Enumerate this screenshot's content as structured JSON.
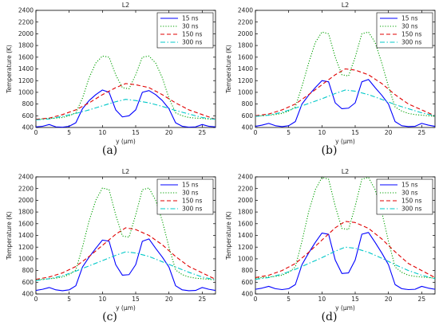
{
  "figure": {
    "panel_tags": [
      "(a)",
      "(b)",
      "(c)",
      "(d)"
    ]
  },
  "chart_data": [
    {
      "type": "line",
      "title": "L2",
      "xlabel": "y (μm)",
      "ylabel": "Temperature (K)",
      "xlim": [
        0,
        27
      ],
      "ylim": [
        400,
        2400
      ],
      "xticks": [
        0,
        5,
        10,
        15,
        20,
        25
      ],
      "yticks": [
        400,
        600,
        800,
        1000,
        1200,
        1400,
        1600,
        1800,
        2000,
        2200,
        2400
      ],
      "grid": false,
      "legend": "top-right",
      "series": [
        {
          "name": "15 ns",
          "color": "#0000ff",
          "dash": "solid",
          "x": [
            0,
            1,
            2,
            3,
            4,
            5,
            6,
            7,
            8,
            9,
            10,
            11,
            12,
            13,
            14,
            15,
            16,
            17,
            18,
            19,
            20,
            21,
            22,
            23,
            24,
            25,
            26,
            27
          ],
          "y": [
            410,
            420,
            450,
            410,
            405,
            420,
            480,
            720,
            860,
            960,
            1040,
            1000,
            700,
            580,
            600,
            700,
            1000,
            1030,
            960,
            860,
            720,
            480,
            420,
            405,
            410,
            450,
            420,
            410
          ]
        },
        {
          "name": "30 ns",
          "color": "#00a000",
          "dash": "dot",
          "x": [
            0,
            1,
            2,
            3,
            4,
            5,
            6,
            7,
            8,
            9,
            10,
            11,
            12,
            13,
            14,
            15,
            16,
            17,
            18,
            19,
            20,
            21,
            22,
            23,
            24,
            25,
            26,
            27
          ],
          "y": [
            540,
            545,
            555,
            560,
            570,
            600,
            650,
            900,
            1250,
            1500,
            1620,
            1600,
            1300,
            1080,
            1060,
            1300,
            1600,
            1620,
            1500,
            1250,
            900,
            650,
            600,
            570,
            560,
            555,
            545,
            540
          ]
        },
        {
          "name": "150 ns",
          "color": "#e00000",
          "dash": "dash",
          "x": [
            0,
            2,
            4,
            6,
            8,
            10,
            12,
            13.5,
            15,
            17,
            19,
            21,
            23,
            25,
            27
          ],
          "y": [
            540,
            560,
            620,
            700,
            820,
            960,
            1080,
            1150,
            1130,
            1080,
            960,
            820,
            700,
            620,
            540
          ]
        },
        {
          "name": "300 ns",
          "color": "#00c8c8",
          "dash": "dashdot",
          "x": [
            0,
            2,
            4,
            6,
            8,
            10,
            12,
            13.5,
            15,
            17,
            19,
            21,
            23,
            25,
            27
          ],
          "y": [
            530,
            545,
            590,
            640,
            700,
            770,
            840,
            880,
            860,
            820,
            760,
            690,
            630,
            570,
            540
          ]
        }
      ]
    },
    {
      "type": "line",
      "title": "L2",
      "xlabel": "y (μm)",
      "ylabel": "Temperature (K)",
      "xlim": [
        0,
        27
      ],
      "ylim": [
        400,
        2400
      ],
      "xticks": [
        0,
        5,
        10,
        15,
        20,
        25
      ],
      "yticks": [
        400,
        600,
        800,
        1000,
        1200,
        1400,
        1600,
        1800,
        2000,
        2200,
        2400
      ],
      "grid": false,
      "legend": "top-right",
      "series": [
        {
          "name": "15 ns",
          "color": "#0000ff",
          "dash": "solid",
          "x": [
            0,
            1,
            2,
            3,
            4,
            5,
            6,
            7,
            8,
            9,
            10,
            11,
            12,
            13,
            14,
            15,
            16,
            17,
            18,
            19,
            20,
            21,
            22,
            23,
            24,
            25,
            26,
            27
          ],
          "y": [
            420,
            440,
            470,
            430,
            415,
            430,
            500,
            800,
            950,
            1080,
            1200,
            1180,
            820,
            720,
            730,
            820,
            1180,
            1220,
            1080,
            950,
            800,
            500,
            430,
            415,
            420,
            470,
            440,
            420
          ]
        },
        {
          "name": "30 ns",
          "color": "#00a000",
          "dash": "dot",
          "x": [
            0,
            1,
            2,
            3,
            4,
            5,
            6,
            7,
            8,
            9,
            10,
            11,
            12,
            13,
            14,
            15,
            16,
            17,
            18,
            19,
            20,
            21,
            22,
            23,
            24,
            25,
            26,
            27
          ],
          "y": [
            590,
            600,
            610,
            620,
            640,
            680,
            750,
            1100,
            1500,
            1850,
            2030,
            2000,
            1600,
            1300,
            1280,
            1600,
            2000,
            2030,
            1850,
            1500,
            1100,
            750,
            680,
            640,
            620,
            610,
            600,
            590
          ]
        },
        {
          "name": "150 ns",
          "color": "#e00000",
          "dash": "dash",
          "x": [
            0,
            2,
            4,
            6,
            8,
            10,
            12,
            13.5,
            15,
            17,
            19,
            21,
            23,
            25,
            27
          ],
          "y": [
            600,
            630,
            700,
            800,
            960,
            1130,
            1300,
            1400,
            1380,
            1300,
            1150,
            960,
            800,
            700,
            600
          ]
        },
        {
          "name": "300 ns",
          "color": "#00c8c8",
          "dash": "dashdot",
          "x": [
            0,
            2,
            4,
            6,
            8,
            10,
            12,
            13.5,
            15,
            17,
            19,
            21,
            23,
            25,
            27
          ],
          "y": [
            590,
            610,
            660,
            730,
            810,
            890,
            980,
            1040,
            1020,
            960,
            880,
            790,
            720,
            650,
            600
          ]
        }
      ]
    },
    {
      "type": "line",
      "title": "L2",
      "xlabel": "y (μm)",
      "ylabel": "Temperature (K)",
      "xlim": [
        0,
        27
      ],
      "ylim": [
        400,
        2400
      ],
      "xticks": [
        0,
        5,
        10,
        15,
        20,
        25
      ],
      "yticks": [
        400,
        600,
        800,
        1000,
        1200,
        1400,
        1600,
        1800,
        2000,
        2200,
        2400
      ],
      "grid": false,
      "legend": "top-right",
      "series": [
        {
          "name": "15 ns",
          "color": "#0000ff",
          "dash": "solid",
          "x": [
            0,
            1,
            2,
            3,
            4,
            5,
            6,
            7,
            8,
            9,
            10,
            11,
            12,
            13,
            14,
            15,
            16,
            17,
            18,
            19,
            20,
            21,
            22,
            23,
            24,
            25,
            26,
            27
          ],
          "y": [
            460,
            480,
            510,
            470,
            455,
            470,
            540,
            860,
            1030,
            1180,
            1320,
            1300,
            900,
            720,
            730,
            900,
            1300,
            1340,
            1180,
            1030,
            860,
            540,
            470,
            455,
            460,
            510,
            480,
            460
          ]
        },
        {
          "name": "30 ns",
          "color": "#00a000",
          "dash": "dot",
          "x": [
            0,
            1,
            2,
            3,
            4,
            5,
            6,
            7,
            8,
            9,
            10,
            11,
            12,
            13,
            14,
            15,
            16,
            17,
            18,
            19,
            20,
            21,
            22,
            23,
            24,
            25,
            26,
            27
          ],
          "y": [
            640,
            650,
            660,
            670,
            690,
            730,
            810,
            1200,
            1650,
            2000,
            2210,
            2180,
            1750,
            1390,
            1370,
            1750,
            2180,
            2210,
            2000,
            1650,
            1200,
            810,
            730,
            690,
            670,
            660,
            650,
            640
          ]
        },
        {
          "name": "150 ns",
          "color": "#e00000",
          "dash": "dash",
          "x": [
            0,
            2,
            4,
            6,
            8,
            10,
            12,
            13.5,
            15,
            17,
            19,
            21,
            23,
            25,
            27
          ],
          "y": [
            650,
            690,
            760,
            870,
            1040,
            1230,
            1420,
            1530,
            1500,
            1400,
            1240,
            1040,
            870,
            760,
            650
          ]
        },
        {
          "name": "300 ns",
          "color": "#00c8c8",
          "dash": "dashdot",
          "x": [
            0,
            2,
            4,
            6,
            8,
            10,
            12,
            13.5,
            15,
            17,
            19,
            21,
            23,
            25,
            27
          ],
          "y": [
            630,
            660,
            710,
            790,
            880,
            970,
            1060,
            1120,
            1100,
            1040,
            950,
            860,
            770,
            690,
            640
          ]
        }
      ]
    },
    {
      "type": "line",
      "title": "L2",
      "xlabel": "y (μm)",
      "ylabel": "Temperature (K)",
      "xlim": [
        0,
        27
      ],
      "ylim": [
        400,
        2400
      ],
      "xticks": [
        0,
        5,
        10,
        15,
        20,
        25
      ],
      "yticks": [
        400,
        600,
        800,
        1000,
        1200,
        1400,
        1600,
        1800,
        2000,
        2200,
        2400
      ],
      "grid": false,
      "legend": "top-right",
      "series": [
        {
          "name": "15 ns",
          "color": "#0000ff",
          "dash": "solid",
          "x": [
            0,
            1,
            2,
            3,
            4,
            5,
            6,
            7,
            8,
            9,
            10,
            11,
            12,
            13,
            14,
            15,
            16,
            17,
            18,
            19,
            20,
            21,
            22,
            23,
            24,
            25,
            26,
            27
          ],
          "y": [
            480,
            500,
            530,
            490,
            475,
            490,
            560,
            900,
            1100,
            1280,
            1440,
            1420,
            980,
            750,
            760,
            980,
            1420,
            1450,
            1280,
            1100,
            900,
            560,
            490,
            475,
            480,
            530,
            500,
            480
          ]
        },
        {
          "name": "30 ns",
          "color": "#00a000",
          "dash": "dot",
          "x": [
            0,
            1,
            2,
            3,
            4,
            5,
            6,
            7,
            8,
            9,
            10,
            11,
            12,
            13,
            14,
            15,
            16,
            17,
            18,
            19,
            20,
            21,
            22,
            23,
            24,
            25,
            26,
            27
          ],
          "y": [
            670,
            680,
            690,
            700,
            720,
            770,
            860,
            1300,
            1800,
            2180,
            2390,
            2360,
            1900,
            1520,
            1500,
            1900,
            2360,
            2390,
            2180,
            1800,
            1300,
            860,
            770,
            720,
            700,
            690,
            680,
            670
          ]
        },
        {
          "name": "150 ns",
          "color": "#e00000",
          "dash": "dash",
          "x": [
            0,
            2,
            4,
            6,
            8,
            10,
            12,
            13.5,
            15,
            17,
            19,
            21,
            23,
            25,
            27
          ],
          "y": [
            680,
            720,
            800,
            920,
            1110,
            1320,
            1530,
            1640,
            1620,
            1520,
            1340,
            1120,
            920,
            800,
            680
          ]
        },
        {
          "name": "300 ns",
          "color": "#00c8c8",
          "dash": "dashdot",
          "x": [
            0,
            2,
            4,
            6,
            8,
            10,
            12,
            13.5,
            15,
            17,
            19,
            21,
            23,
            25,
            27
          ],
          "y": [
            650,
            680,
            740,
            820,
            920,
            1020,
            1130,
            1200,
            1180,
            1110,
            1010,
            900,
            800,
            720,
            660
          ]
        }
      ]
    }
  ]
}
